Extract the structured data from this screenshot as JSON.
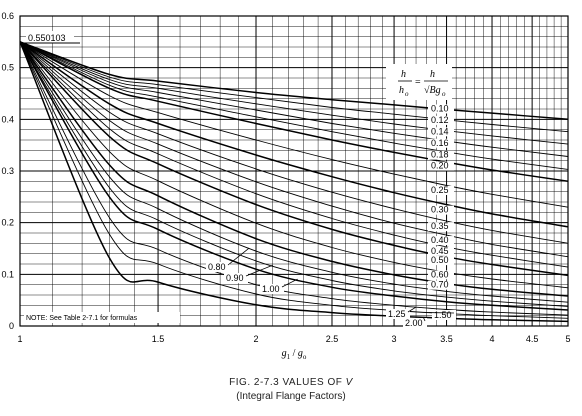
{
  "chart_data": {
    "type": "line",
    "title": "FIG. 2-7.3  VALUES OF",
    "title_symbol": "V",
    "subtitle": "(Integral Flange Factors)",
    "xlabel": "g1 / go",
    "xlabel_parts": {
      "a": "g",
      "a_sub": "1",
      "sep": " / ",
      "b": "g",
      "b_sub": "o"
    },
    "ylabel": "",
    "xscale": "log",
    "xlim": [
      1,
      5
    ],
    "ylim": [
      0,
      0.6
    ],
    "grid": true,
    "x_ticks": [
      "1",
      "1.5",
      "2",
      "2.5",
      "3",
      "3.5",
      "4",
      "4.5",
      "5"
    ],
    "y_ticks": [
      "0",
      "0.1",
      "0.2",
      "0.3",
      "0.4",
      "0.5",
      "0.6"
    ],
    "start_value_label": "0.550103",
    "start_value": 0.550103,
    "legend_heading": {
      "h": "h",
      "ho": "h",
      "ho_sub": "o",
      "eq": "=",
      "rhs_num": "h",
      "rhs_den": "√Bg",
      "rhs_den_sub": "o"
    },
    "note": "NOTE: See Table 2-7.1 for formulas",
    "series": [
      {
        "name": "0.10",
        "x": [
          1,
          1.3,
          1.5,
          2,
          2.5,
          3,
          3.5,
          4,
          5
        ],
        "y": [
          0.550103,
          0.487,
          0.474,
          0.452,
          0.438,
          0.428,
          0.419,
          0.412,
          0.4
        ]
      },
      {
        "name": "0.12",
        "x": [
          1,
          1.3,
          1.5,
          2,
          2.5,
          3,
          3.5,
          4,
          5
        ],
        "y": [
          0.550103,
          0.482,
          0.467,
          0.442,
          0.423,
          0.41,
          0.399,
          0.39,
          0.376
        ]
      },
      {
        "name": "0.14",
        "x": [
          1,
          1.3,
          1.5,
          2,
          2.5,
          3,
          3.5,
          4,
          5
        ],
        "y": [
          0.550103,
          0.477,
          0.46,
          0.43,
          0.408,
          0.391,
          0.378,
          0.368,
          0.352
        ]
      },
      {
        "name": "0.16",
        "x": [
          1,
          1.3,
          1.5,
          2,
          2.5,
          3,
          3.5,
          4,
          5
        ],
        "y": [
          0.550103,
          0.472,
          0.452,
          0.418,
          0.392,
          0.373,
          0.358,
          0.346,
          0.328
        ]
      },
      {
        "name": "0.18",
        "x": [
          1,
          1.3,
          1.5,
          2,
          2.5,
          3,
          3.5,
          4,
          5
        ],
        "y": [
          0.550103,
          0.466,
          0.443,
          0.405,
          0.376,
          0.354,
          0.337,
          0.323,
          0.303
        ]
      },
      {
        "name": "0.20",
        "x": [
          1,
          1.3,
          1.5,
          2,
          2.5,
          3,
          3.5,
          4,
          5
        ],
        "y": [
          0.550103,
          0.46,
          0.435,
          0.392,
          0.36,
          0.336,
          0.317,
          0.302,
          0.28
        ]
      },
      {
        "name": "0.25",
        "x": [
          1,
          1.3,
          1.5,
          2,
          2.5,
          3,
          3.5,
          4,
          5
        ],
        "y": [
          0.550103,
          0.446,
          0.413,
          0.36,
          0.322,
          0.294,
          0.272,
          0.255,
          0.23
        ]
      },
      {
        "name": "0.30",
        "x": [
          1,
          1.3,
          1.5,
          2,
          2.5,
          3,
          3.5,
          4,
          5
        ],
        "y": [
          0.550103,
          0.43,
          0.392,
          0.331,
          0.289,
          0.258,
          0.235,
          0.217,
          0.192
        ]
      },
      {
        "name": "0.35",
        "x": [
          1,
          1.3,
          1.5,
          2,
          2.5,
          3,
          3.5,
          4,
          5
        ],
        "y": [
          0.550103,
          0.414,
          0.372,
          0.304,
          0.259,
          0.227,
          0.203,
          0.185,
          0.16
        ]
      },
      {
        "name": "0.40",
        "x": [
          1,
          1.3,
          1.5,
          2,
          2.5,
          3,
          3.5,
          4,
          5
        ],
        "y": [
          0.550103,
          0.398,
          0.352,
          0.279,
          0.232,
          0.199,
          0.176,
          0.158,
          0.134
        ]
      },
      {
        "name": "0.45",
        "x": [
          1,
          1.3,
          1.5,
          2,
          2.5,
          3,
          3.5,
          4,
          5
        ],
        "y": [
          0.550103,
          0.382,
          0.333,
          0.256,
          0.208,
          0.176,
          0.153,
          0.137,
          0.114
        ]
      },
      {
        "name": "0.50",
        "x": [
          1,
          1.3,
          1.5,
          2,
          2.5,
          3,
          3.5,
          4,
          5
        ],
        "y": [
          0.550103,
          0.367,
          0.314,
          0.235,
          0.187,
          0.156,
          0.134,
          0.119,
          0.098
        ]
      },
      {
        "name": "0.60",
        "x": [
          1,
          1.3,
          1.5,
          2,
          2.5,
          3,
          3.5,
          4,
          5
        ],
        "y": [
          0.550103,
          0.338,
          0.281,
          0.199,
          0.152,
          0.123,
          0.104,
          0.091,
          0.074
        ]
      },
      {
        "name": "0.70",
        "x": [
          1,
          1.3,
          1.5,
          2,
          2.5,
          3,
          3.5,
          4,
          5
        ],
        "y": [
          0.550103,
          0.312,
          0.252,
          0.169,
          0.125,
          0.099,
          0.082,
          0.071,
          0.058
        ]
      },
      {
        "name": "0.80",
        "x": [
          1,
          1.3,
          1.5,
          2,
          2.5,
          3,
          3.5,
          4,
          5
        ],
        "y": [
          0.550103,
          0.289,
          0.227,
          0.145,
          0.104,
          0.081,
          0.067,
          0.058,
          0.046
        ]
      },
      {
        "name": "0.90",
        "x": [
          1,
          1.3,
          1.5,
          2,
          2.5,
          3,
          3.5,
          4,
          5
        ],
        "y": [
          0.550103,
          0.268,
          0.205,
          0.126,
          0.088,
          0.068,
          0.056,
          0.048,
          0.038
        ]
      },
      {
        "name": "1.00",
        "x": [
          1,
          1.3,
          1.5,
          2,
          2.5,
          3,
          3.5,
          4,
          5
        ],
        "y": [
          0.550103,
          0.25,
          0.187,
          0.11,
          0.075,
          0.058,
          0.047,
          0.04,
          0.031
        ]
      },
      {
        "name": "1.25",
        "x": [
          1,
          1.3,
          1.5,
          2,
          2.5,
          3,
          3.5,
          4,
          5
        ],
        "y": [
          0.550103,
          0.21,
          0.148,
          0.08,
          0.053,
          0.04,
          0.032,
          0.027,
          0.021
        ]
      },
      {
        "name": "1.50",
        "x": [
          1,
          1.3,
          1.5,
          2,
          2.5,
          3,
          3.5,
          4,
          5
        ],
        "y": [
          0.550103,
          0.178,
          0.12,
          0.062,
          0.04,
          0.03,
          0.024,
          0.02,
          0.015
        ]
      },
      {
        "name": "2.00",
        "x": [
          1,
          1.3,
          1.5,
          2,
          2.5,
          3,
          3.5,
          4,
          5
        ],
        "y": [
          0.550103,
          0.132,
          0.085,
          0.041,
          0.026,
          0.019,
          0.015,
          0.012,
          0.009
        ]
      }
    ]
  }
}
